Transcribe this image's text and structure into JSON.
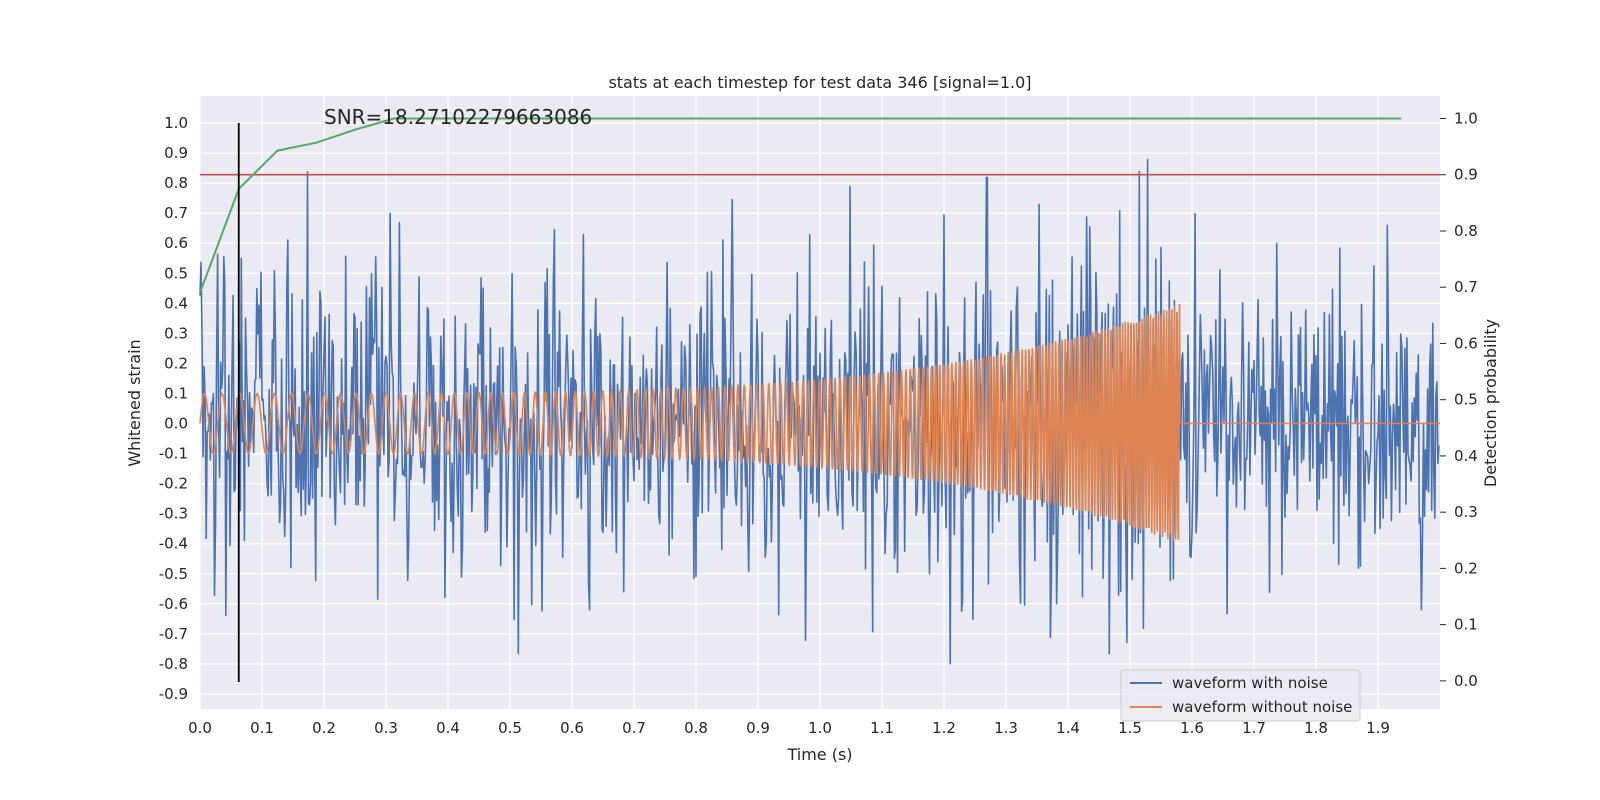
{
  "chart_data": {
    "type": "line",
    "title": "stats at each timestep for test data 346 [signal=1.0]",
    "xlabel": "Time (s)",
    "ylabel": "Whitened strain",
    "y2label": "Detection probability",
    "xlim": [
      0.0,
      2.0
    ],
    "ylim": [
      -0.95,
      1.09
    ],
    "y2lim": [
      -0.05,
      1.04
    ],
    "xticks": [
      "0.0",
      "0.1",
      "0.2",
      "0.3",
      "0.4",
      "0.5",
      "0.6",
      "0.7",
      "0.8",
      "0.9",
      "1.0",
      "1.1",
      "1.2",
      "1.3",
      "1.4",
      "1.5",
      "1.6",
      "1.7",
      "1.8",
      "1.9"
    ],
    "yticks": [
      "1.0",
      "0.9",
      "0.8",
      "0.7",
      "0.6",
      "0.5",
      "0.4",
      "0.3",
      "0.2",
      "0.1",
      "0.0",
      "-0.1",
      "-0.2",
      "-0.3",
      "-0.4",
      "-0.5",
      "-0.6",
      "-0.7",
      "-0.8",
      "-0.9"
    ],
    "y2ticks": [
      "1.0",
      "0.9",
      "0.8",
      "0.7",
      "0.6",
      "0.5",
      "0.4",
      "0.3",
      "0.2",
      "0.1",
      "0.0"
    ],
    "annotation": "SNR=18.27102279663086",
    "detection_threshold": 0.9,
    "marker_time": 0.0625,
    "marker_range": [
      -0.86,
      1.0
    ],
    "series": [
      {
        "name": "waveform with noise",
        "axis": "left",
        "color": "#4c72b0",
        "samples": 1200,
        "duration": 2.0,
        "noise_sigma": 0.24,
        "seed": 346
      },
      {
        "name": "waveform without noise",
        "axis": "left",
        "color": "#dd8452",
        "chirp_start_amp": 0.1,
        "chirp_peak_amp": 0.4,
        "chirp_start_freq": 35,
        "chirp_end_freq": 240,
        "merger_time": 1.58,
        "post_merger_value": 0.0
      },
      {
        "name": "detection probability",
        "axis": "right",
        "color": "#55a868",
        "x": [
          0.0,
          0.0625,
          0.125,
          0.1875,
          0.25,
          0.3125,
          0.375,
          0.4375,
          0.5,
          0.5625,
          0.625,
          0.6875,
          0.75,
          0.8125,
          0.875,
          0.9375,
          1.0,
          1.0625,
          1.125,
          1.1875,
          1.25,
          1.3125,
          1.375,
          1.4375,
          1.5,
          1.5625,
          1.625,
          1.6875,
          1.75,
          1.8125,
          1.875,
          1.9375
        ],
        "y": [
          0.69,
          0.875,
          0.943,
          0.957,
          0.98,
          1.0,
          1.0,
          1.0,
          1.0,
          1.0,
          1.0,
          1.0,
          1.0,
          1.0,
          1.0,
          1.0,
          1.0,
          1.0,
          1.0,
          1.0,
          1.0,
          1.0,
          1.0,
          1.0,
          1.0,
          1.0,
          1.0,
          1.0,
          1.0,
          1.0,
          1.0,
          1.0
        ]
      }
    ],
    "legend": {
      "position": "lower-right",
      "entries": [
        "waveform with noise",
        "waveform without noise"
      ]
    },
    "colors": {
      "background": "#eaeaf2",
      "grid": "#ffffff",
      "threshold": "#c44e52",
      "marker": "#000000"
    }
  }
}
